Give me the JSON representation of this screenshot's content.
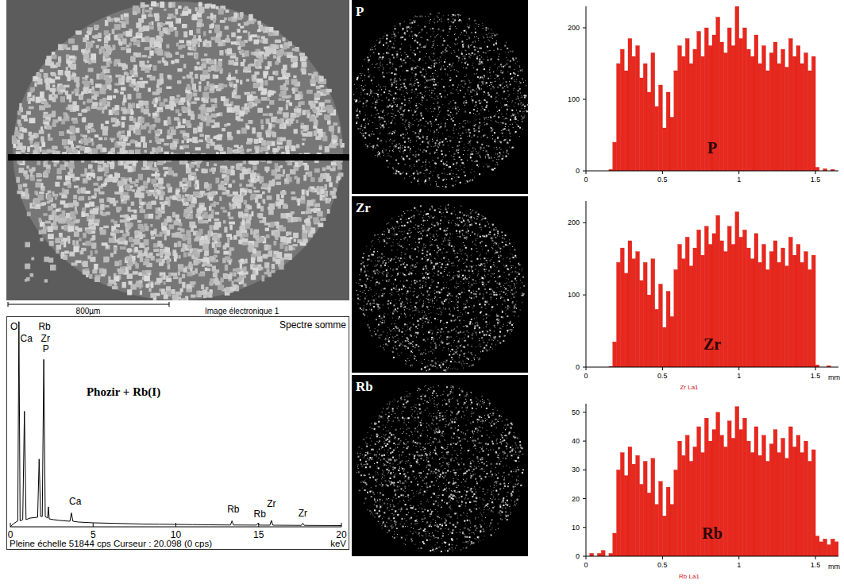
{
  "micrograph": {
    "scale_bar": "800µm",
    "caption": "Image électronique 1"
  },
  "maps": [
    {
      "label": "P"
    },
    {
      "label": "Zr"
    },
    {
      "label": "Rb"
    }
  ],
  "chart_data": [
    {
      "type": "line",
      "title": "Spectre somme",
      "subtitle": "Pleine échelle 51844 cps  Curseur : 20.098  (0 cps)",
      "xlabel": "keV",
      "color": "#000000",
      "tick_labels": "x",
      "x": [
        0,
        0.2,
        0.45,
        0.52,
        0.59,
        0.75,
        0.85,
        0.95,
        1.2,
        1.65,
        1.74,
        1.83,
        1.93,
        2.02,
        2.11,
        2.25,
        2.3,
        2.35,
        2.6,
        3.0,
        3.6,
        3.69,
        3.78,
        4.1,
        5,
        6,
        7,
        8,
        9,
        10,
        11,
        12,
        13.3,
        13.39,
        13.48,
        14.87,
        14.96,
        15.05,
        15.68,
        15.77,
        15.86,
        17.58,
        17.67,
        17.76,
        20
      ],
      "values": [
        0,
        800,
        1500,
        51500,
        1500,
        1800,
        29000,
        1800,
        2200,
        2400,
        17000,
        2600,
        2600,
        42000,
        2600,
        2200,
        5000,
        2000,
        1800,
        1600,
        1400,
        3500,
        1400,
        1200,
        1000,
        900,
        800,
        700,
        650,
        600,
        550,
        500,
        450,
        1500,
        450,
        420,
        900,
        420,
        400,
        1600,
        400,
        350,
        900,
        350,
        300
      ],
      "xlim": [
        0,
        20
      ],
      "xticks": [
        0,
        5,
        10,
        15,
        20
      ],
      "ylim": [
        0,
        51844
      ],
      "annotations": [
        {
          "text": "O",
          "x": 0.0,
          "y": 49500
        },
        {
          "text": "Ca",
          "x": 0.6,
          "y": 46500
        },
        {
          "text": "Rb",
          "x": 1.7,
          "y": 49500
        },
        {
          "text": "Zr",
          "x": 1.85,
          "y": 46500
        },
        {
          "text": "P",
          "x": 1.95,
          "y": 43800
        },
        {
          "text": "Phozir + Rb(I)",
          "x": 4.6,
          "y": 33000
        },
        {
          "text": "Ca",
          "x": 3.55,
          "y": 5500
        },
        {
          "text": "Rb",
          "x": 13.1,
          "y": 3500
        },
        {
          "text": "Rb",
          "x": 14.7,
          "y": 2300
        },
        {
          "text": "Zr",
          "x": 15.5,
          "y": 5000
        },
        {
          "text": "Zr",
          "x": 17.4,
          "y": 2600
        }
      ]
    },
    {
      "type": "histogram",
      "title": "P",
      "color": "#e8281e",
      "bins": [
        0,
        0.025,
        0.05,
        0.075,
        0.1,
        0.125,
        0.15,
        0.175,
        0.2,
        0.225,
        0.25,
        0.275,
        0.3,
        0.325,
        0.35,
        0.375,
        0.4,
        0.425,
        0.45,
        0.475,
        0.5,
        0.525,
        0.55,
        0.575,
        0.6,
        0.625,
        0.65,
        0.675,
        0.7,
        0.725,
        0.75,
        0.775,
        0.8,
        0.825,
        0.85,
        0.875,
        0.9,
        0.925,
        0.95,
        0.975,
        1,
        1.025,
        1.05,
        1.075,
        1.1,
        1.125,
        1.15,
        1.175,
        1.2,
        1.225,
        1.25,
        1.275,
        1.3,
        1.325,
        1.35,
        1.375,
        1.4,
        1.425,
        1.45,
        1.475,
        1.5,
        1.525,
        1.55,
        1.575,
        1.6,
        1.625,
        1.65
      ],
      "values": [
        0,
        0,
        0,
        0,
        0,
        0,
        2,
        40,
        150,
        170,
        140,
        185,
        160,
        175,
        130,
        150,
        110,
        165,
        90,
        120,
        60,
        110,
        75,
        140,
        175,
        160,
        185,
        150,
        170,
        195,
        160,
        200,
        175,
        190,
        215,
        180,
        165,
        200,
        175,
        230,
        185,
        200,
        170,
        160,
        190,
        150,
        175,
        140,
        165,
        180,
        150,
        170,
        145,
        185,
        160,
        175,
        150,
        165,
        140,
        160,
        5,
        0,
        3,
        0,
        2,
        0
      ],
      "xlim": [
        0,
        1.65
      ],
      "xticks": [
        0,
        0.5,
        1,
        1.5
      ],
      "ylim": [
        0,
        230
      ],
      "yticks": [
        0,
        100,
        200
      ]
    },
    {
      "type": "histogram",
      "title": "Zr",
      "subtitle": "Zr La1",
      "xlabel": "mm",
      "color": "#e8281e",
      "bins": [
        0,
        0.025,
        0.05,
        0.075,
        0.1,
        0.125,
        0.15,
        0.175,
        0.2,
        0.225,
        0.25,
        0.275,
        0.3,
        0.325,
        0.35,
        0.375,
        0.4,
        0.425,
        0.45,
        0.475,
        0.5,
        0.525,
        0.55,
        0.575,
        0.6,
        0.625,
        0.65,
        0.675,
        0.7,
        0.725,
        0.75,
        0.775,
        0.8,
        0.825,
        0.85,
        0.875,
        0.9,
        0.925,
        0.95,
        0.975,
        1,
        1.025,
        1.05,
        1.075,
        1.1,
        1.125,
        1.15,
        1.175,
        1.2,
        1.225,
        1.25,
        1.275,
        1.3,
        1.325,
        1.35,
        1.375,
        1.4,
        1.425,
        1.45,
        1.475,
        1.5,
        1.525,
        1.55,
        1.575,
        1.6,
        1.625,
        1.65
      ],
      "values": [
        0,
        0,
        0,
        0,
        0,
        0,
        1,
        35,
        145,
        165,
        130,
        175,
        150,
        160,
        120,
        145,
        100,
        150,
        80,
        115,
        55,
        105,
        70,
        135,
        170,
        150,
        180,
        140,
        165,
        190,
        155,
        195,
        170,
        185,
        210,
        175,
        160,
        195,
        170,
        215,
        180,
        190,
        165,
        150,
        185,
        145,
        170,
        135,
        160,
        175,
        145,
        165,
        140,
        180,
        155,
        170,
        145,
        160,
        135,
        155,
        3,
        0,
        0,
        2,
        0,
        0
      ],
      "xlim": [
        0,
        1.65
      ],
      "xticks": [
        0,
        0.5,
        1,
        1.5
      ],
      "ylim": [
        0,
        230
      ],
      "yticks": [
        0,
        100,
        200
      ]
    },
    {
      "type": "histogram",
      "title": "Rb",
      "subtitle": "Rb La1",
      "xlabel": "mm",
      "color": "#e8281e",
      "bins": [
        0,
        0.025,
        0.05,
        0.075,
        0.1,
        0.125,
        0.15,
        0.175,
        0.2,
        0.225,
        0.25,
        0.275,
        0.3,
        0.325,
        0.35,
        0.375,
        0.4,
        0.425,
        0.45,
        0.475,
        0.5,
        0.525,
        0.55,
        0.575,
        0.6,
        0.625,
        0.65,
        0.675,
        0.7,
        0.725,
        0.75,
        0.775,
        0.8,
        0.825,
        0.85,
        0.875,
        0.9,
        0.925,
        0.95,
        0.975,
        1,
        1.025,
        1.05,
        1.075,
        1.1,
        1.125,
        1.15,
        1.175,
        1.2,
        1.225,
        1.25,
        1.275,
        1.3,
        1.325,
        1.35,
        1.375,
        1.4,
        1.425,
        1.45,
        1.475,
        1.5,
        1.525,
        1.55,
        1.575,
        1.6,
        1.625,
        1.65
      ],
      "values": [
        0,
        1,
        0,
        1,
        2,
        0,
        1,
        8,
        30,
        36,
        28,
        38,
        32,
        35,
        25,
        33,
        22,
        34,
        18,
        26,
        14,
        24,
        18,
        30,
        40,
        35,
        42,
        33,
        38,
        45,
        36,
        48,
        40,
        44,
        50,
        42,
        38,
        47,
        41,
        52,
        44,
        48,
        40,
        36,
        45,
        35,
        42,
        33,
        39,
        44,
        36,
        41,
        34,
        45,
        38,
        42,
        36,
        40,
        33,
        37,
        7,
        5,
        6,
        4,
        6,
        5
      ],
      "xlim": [
        0,
        1.65
      ],
      "xticks": [
        0,
        0.5,
        1,
        1.5
      ],
      "ylim": [
        0,
        53
      ],
      "yticks": [
        0,
        10,
        20,
        30,
        40,
        50
      ]
    }
  ]
}
